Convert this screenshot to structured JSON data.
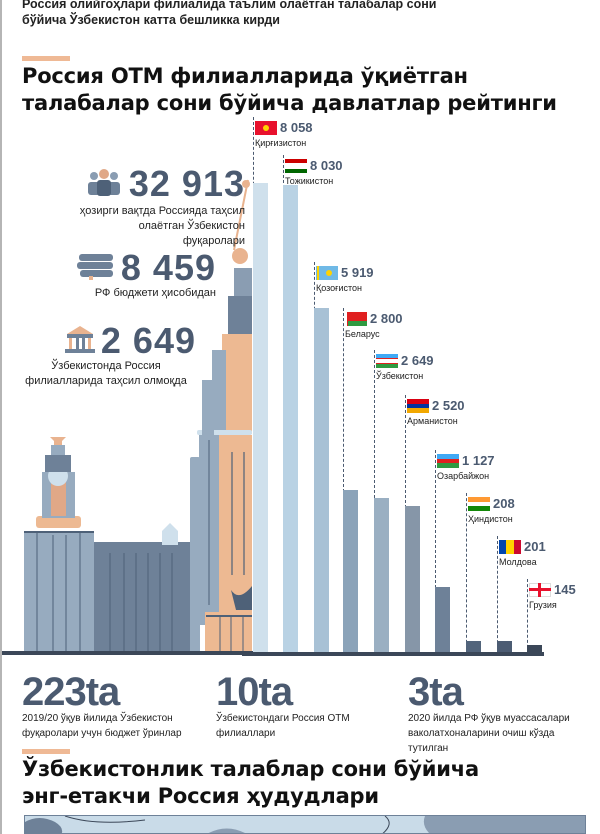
{
  "lead": "Россия олийгоҳлари филиалида таълим олаётган талабалар сони бўйича Ўзбекистон катта бешликка кирди",
  "title1": "Россия ОТМ филиалларида ўқиётган талабалар сони  бўйича давлатлар рейтинги",
  "stats": [
    {
      "icon": "people-icon",
      "value": "32 913",
      "caption": "ҳозирги вақтда Россияда таҳсил олаётган Ўзбекистон фуқаролари"
    },
    {
      "icon": "books-icon",
      "value": "8 459",
      "caption": "РФ бюджети ҳисобидан"
    },
    {
      "icon": "university-icon",
      "value": "2 649",
      "caption": "Ўзбекистонда Россия филиалларида таҳсил олмоқда"
    }
  ],
  "bottom_stats": [
    {
      "value": "223ta",
      "caption": "2019/20 ўқув йилида Ўзбекистон фуқаролари учун бюджет ўринлар"
    },
    {
      "value": "10ta",
      "caption": "Ўзбекистондаги Россия ОТМ филиаллари"
    },
    {
      "value": "3ta",
      "caption": "2020 йилда РФ ўқув муассасалари ваколатхоналарини очиш кўзда тутилган"
    }
  ],
  "title2": "Ўзбекистонлик талаблар сони бўйича энг-етакчи Россия ҳудудлари",
  "chart_data": {
    "type": "bar",
    "title": "Россия ОТМ филиалларида ўқиётган талабалар сони бўйича давлатлар рейтинги",
    "categories": [
      "Қирғизистон",
      "Тожикистон",
      "Қозоғистон",
      "Беларус",
      "Ўзбекистон",
      "Арманистон",
      "Озарбайжон",
      "Ҳиндистон",
      "Молдова",
      "Грузия"
    ],
    "values": [
      8058,
      8030,
      5919,
      2800,
      2649,
      2520,
      1127,
      208,
      201,
      145
    ],
    "value_labels": [
      "8 058",
      "8 030",
      "5 919",
      "2 800",
      "2 649",
      "2 520",
      "1 127",
      "208",
      "201",
      "145"
    ],
    "flags": [
      "kg",
      "tj",
      "kz",
      "by",
      "uz",
      "am",
      "az",
      "in",
      "md",
      "ge"
    ],
    "bar_colors": [
      "#cfe0ec",
      "#b9d2e4",
      "#a8c1d5",
      "#8ba3b9",
      "#9aafc2",
      "#8696a8",
      "#6e8198",
      "#52647b",
      "#4c5c73",
      "#3b4758"
    ],
    "xlabel": "",
    "ylabel": "",
    "ylim": [
      0,
      8058
    ]
  }
}
